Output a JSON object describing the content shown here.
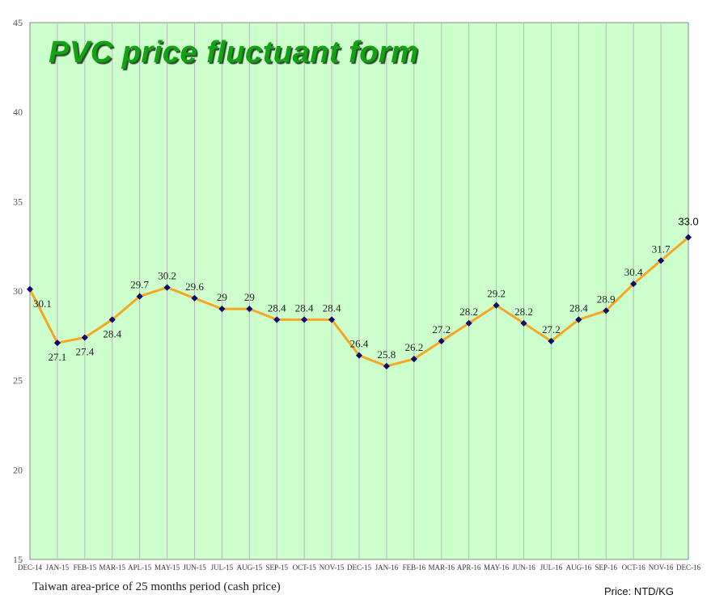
{
  "chart_data": {
    "type": "line",
    "title": "PVC price fluctuant form",
    "caption": "Taiwan area-price of 25 months period (cash price)",
    "unit_label": "Price: NTD/KG",
    "categories": [
      "DEC-14",
      "JAN-15",
      "FEB-15",
      "MAR-15",
      "APL-15",
      "MAY-15",
      "JUN-15",
      "JUL-15",
      "AUG-15",
      "SEP-15",
      "OCT-15",
      "NOV-15",
      "DEC-15",
      "JAN-16",
      "FEB-16",
      "MAR-16",
      "APR-16",
      "MAY-16",
      "JUN-16",
      "JUL-16",
      "AUG-16",
      "SEP-16",
      "OCT-16",
      "NOV-16",
      "DEC-16"
    ],
    "values": [
      30.1,
      27.1,
      27.4,
      28.4,
      29.7,
      30.2,
      29.6,
      29,
      29,
      28.4,
      28.4,
      28.4,
      26.4,
      25.8,
      26.2,
      27.2,
      28.2,
      29.2,
      28.2,
      27.2,
      28.4,
      28.9,
      30.4,
      31.7,
      33.0
    ],
    "data_labels": [
      "30.1",
      "27.1",
      "27.4",
      "28.4",
      "29.7",
      "30.2",
      "29.6",
      "29",
      "29",
      "28.4",
      "28.4",
      "28.4",
      "26.4",
      "25.8",
      "26.2",
      "27.2",
      "28.2",
      "29.2",
      "28.2",
      "27.2",
      "28.4",
      "28.9",
      "30.4",
      "31.7",
      "33.0"
    ],
    "y_ticks": [
      "15",
      "20",
      "25",
      "30",
      "35",
      "40",
      "45"
    ],
    "ylim": [
      15,
      45
    ],
    "grid": "vertical",
    "line_color": "#f5a623",
    "marker_color": "#0b0b7a",
    "plot_background": "#ccffcc",
    "title_color": "#12a312"
  }
}
